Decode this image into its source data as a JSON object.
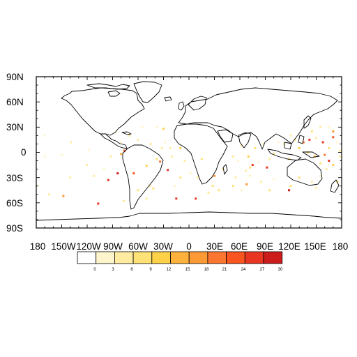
{
  "map": {
    "projection": "cylindrical-equidistant",
    "lon_range": [
      -180,
      180
    ],
    "lat_range": [
      -90,
      90
    ],
    "lat_labels": [
      "90N",
      "60N",
      "30N",
      "0",
      "30S",
      "60S",
      "90S"
    ],
    "lon_labels": [
      "180",
      "150W",
      "120W",
      "90W",
      "60W",
      "30W",
      "0",
      "30E",
      "60E",
      "90E",
      "120E",
      "150E",
      "180"
    ]
  },
  "colorbar": {
    "labels": [
      "0",
      "3",
      "6",
      "9",
      "12",
      "15",
      "18",
      "21",
      "24",
      "27",
      "30"
    ],
    "colors": [
      "#ffffff",
      "#fff5cc",
      "#ffeca0",
      "#fee276",
      "#fed149",
      "#feb23c",
      "#fe9a35",
      "#fd7631",
      "#f85520",
      "#e83623",
      "#cc1c1c"
    ]
  },
  "chart_data": {
    "type": "heatmap",
    "title": "",
    "x_range": [
      -180,
      180
    ],
    "y_range": [
      -90,
      90
    ],
    "x_ticks": [
      "180",
      "150W",
      "120W",
      "90W",
      "60W",
      "30W",
      "0",
      "30E",
      "60E",
      "90E",
      "120E",
      "150E",
      "180"
    ],
    "y_ticks": [
      "90N",
      "60N",
      "30N",
      "0",
      "30S",
      "60S",
      "90S"
    ],
    "scale_bins": [
      0,
      3,
      6,
      9,
      12,
      15,
      18,
      21,
      24,
      27,
      30
    ],
    "points": [
      [
        -139,
        12,
        6
      ],
      [
        -170,
        -5,
        5
      ],
      [
        -150,
        -3,
        2
      ],
      [
        -118,
        3,
        5
      ],
      [
        -100,
        -20,
        4
      ],
      [
        -92,
        -5,
        8
      ],
      [
        -80,
        -2,
        15
      ],
      [
        -76,
        2,
        24
      ],
      [
        -95,
        -33,
        28
      ],
      [
        -112,
        -28,
        6
      ],
      [
        -148,
        -52,
        18
      ],
      [
        -107,
        -61,
        27
      ],
      [
        -84,
        -25,
        30
      ],
      [
        -65,
        -25,
        24
      ],
      [
        -50,
        -16,
        14
      ],
      [
        -38,
        -8,
        11
      ],
      [
        -46,
        -40,
        7
      ],
      [
        -42,
        -43,
        10
      ],
      [
        -60,
        -45,
        9
      ],
      [
        -25,
        -21,
        28
      ],
      [
        -34,
        -11,
        21
      ],
      [
        -20,
        -5,
        7
      ],
      [
        -22,
        5,
        6
      ],
      [
        -10,
        5,
        14
      ],
      [
        -32,
        5,
        6
      ],
      [
        -28,
        12,
        5
      ],
      [
        -38,
        30,
        5
      ],
      [
        -30,
        28,
        12
      ],
      [
        -17,
        -40,
        5
      ],
      [
        -15,
        -55,
        29
      ],
      [
        -50,
        -55,
        8
      ],
      [
        -77,
        -58,
        6
      ],
      [
        8,
        -55,
        28
      ],
      [
        15,
        -8,
        9
      ],
      [
        28,
        -40,
        10
      ],
      [
        23,
        -48,
        8
      ],
      [
        40,
        -20,
        6
      ],
      [
        52,
        -40,
        10
      ],
      [
        62,
        -45,
        5
      ],
      [
        68,
        -38,
        20
      ],
      [
        67,
        -22,
        8
      ],
      [
        72,
        -28,
        5
      ],
      [
        72,
        -18,
        9
      ],
      [
        58,
        -10,
        5
      ],
      [
        70,
        -5,
        12
      ],
      [
        52,
        -5,
        6
      ],
      [
        62,
        8,
        7
      ],
      [
        78,
        5,
        9
      ],
      [
        75,
        -15,
        27
      ],
      [
        82,
        -12,
        5
      ],
      [
        95,
        -8,
        7
      ],
      [
        92,
        -18,
        28
      ],
      [
        100,
        -2,
        9
      ],
      [
        100,
        -32,
        5
      ],
      [
        120,
        -40,
        9
      ],
      [
        118,
        -45,
        30
      ],
      [
        130,
        -30,
        10
      ],
      [
        145,
        -35,
        6
      ],
      [
        150,
        -42,
        8
      ],
      [
        155,
        -28,
        5
      ],
      [
        162,
        -20,
        7
      ],
      [
        170,
        -15,
        12
      ],
      [
        175,
        -35,
        9
      ],
      [
        118,
        -8,
        10
      ],
      [
        130,
        5,
        14
      ],
      [
        135,
        12,
        22
      ],
      [
        142,
        15,
        28
      ],
      [
        150,
        17,
        6
      ],
      [
        158,
        12,
        29
      ],
      [
        160,
        -3,
        22
      ],
      [
        165,
        5,
        10
      ],
      [
        170,
        18,
        24
      ],
      [
        175,
        12,
        5
      ],
      [
        140,
        0,
        12
      ],
      [
        125,
        15,
        8
      ],
      [
        120,
        20,
        6
      ],
      [
        112,
        10,
        7
      ],
      [
        148,
        -5,
        15
      ],
      [
        155,
        -13,
        9
      ],
      [
        165,
        -10,
        28
      ],
      [
        178,
        -5,
        6
      ],
      [
        155,
        30,
        8
      ],
      [
        165,
        30,
        5
      ],
      [
        170,
        25,
        18
      ],
      [
        178,
        2,
        8
      ],
      [
        145,
        25,
        9
      ],
      [
        105,
        12,
        5
      ],
      [
        88,
        10,
        6
      ],
      [
        -170,
        20,
        5
      ],
      [
        -120,
        -15,
        6
      ],
      [
        -140,
        -30,
        7
      ],
      [
        -178,
        -40,
        4
      ],
      [
        -165,
        -50,
        6
      ],
      [
        -60,
        15,
        6
      ],
      [
        -55,
        30,
        5
      ],
      [
        -45,
        10,
        8
      ],
      [
        -70,
        20,
        6
      ],
      [
        -80,
        12,
        5
      ],
      [
        -86,
        25,
        5
      ],
      [
        -5,
        -10,
        6
      ],
      [
        2,
        -25,
        5
      ],
      [
        -10,
        -30,
        9
      ],
      [
        10,
        -30,
        6
      ],
      [
        30,
        -28,
        18
      ],
      [
        35,
        -45,
        9
      ],
      [
        55,
        -30,
        7
      ],
      [
        85,
        -35,
        6
      ],
      [
        95,
        -45,
        10
      ]
    ]
  }
}
